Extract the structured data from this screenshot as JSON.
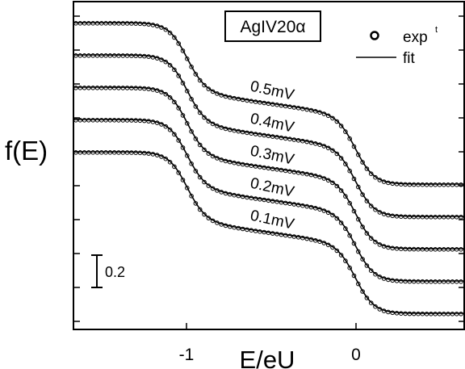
{
  "chart_data": {
    "type": "line",
    "sample_label": "AgIV20α",
    "xlabel": "E/eU",
    "ylabel": "f(E)",
    "x_ticks": [
      "-1",
      "0"
    ],
    "xlim": [
      -1.65,
      0.65
    ],
    "scale_bar_label": "0.2",
    "scale_bar_value": 0.2,
    "grid": false,
    "legend": {
      "position": "top-right",
      "experiment_label": "exp",
      "experiment_superscript": "t",
      "fit_label": "fit"
    },
    "series": [
      {
        "name": "0.5mV",
        "offset": 0.8
      },
      {
        "name": "0.4mV",
        "offset": 0.6
      },
      {
        "name": "0.3mV",
        "offset": 0.4
      },
      {
        "name": "0.2mV",
        "offset": 0.2
      },
      {
        "name": "0.1mV",
        "offset": 0.0
      }
    ],
    "model": {
      "steps": [
        {
          "x": -1.0,
          "height": 0.5
        },
        {
          "x": 0.0,
          "height": 0.5
        }
      ],
      "plateau_slope": -0.15
    }
  }
}
